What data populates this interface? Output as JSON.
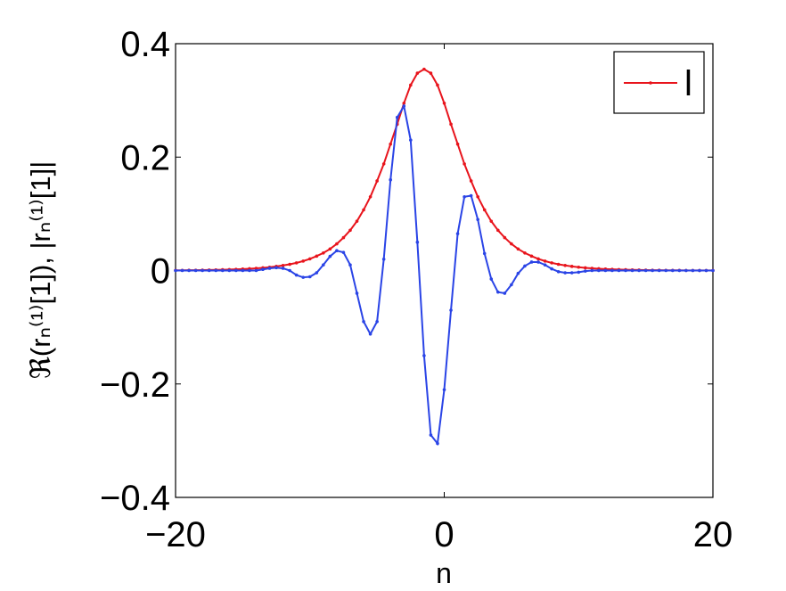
{
  "chart_data": {
    "type": "line",
    "x_label": "n",
    "y_label": "ℜ(rₙ⁽¹⁾[1]), |rₙ⁽¹⁾[1]|",
    "x": [
      -20,
      -19.5,
      -19,
      -18.5,
      -18,
      -17.5,
      -17,
      -16.5,
      -16,
      -15.5,
      -15,
      -14.5,
      -14,
      -13.5,
      -13,
      -12.5,
      -12,
      -11.5,
      -11,
      -10.5,
      -10,
      -9.5,
      -9,
      -8.5,
      -8,
      -7.5,
      -7,
      -6.5,
      -6,
      -5.5,
      -5,
      -4.5,
      -4,
      -3.5,
      -3,
      -2.5,
      -2,
      -1.5,
      -1,
      -0.5,
      0,
      0.5,
      1,
      1.5,
      2,
      2.5,
      3,
      3.5,
      4,
      4.5,
      5,
      5.5,
      6,
      6.5,
      7,
      7.5,
      8,
      8.5,
      9,
      9.5,
      10,
      10.5,
      11,
      11.5,
      12,
      12.5,
      13,
      13.5,
      14,
      14.5,
      15,
      15.5,
      16,
      16.5,
      17,
      17.5,
      18,
      18.5,
      19,
      19.5,
      20
    ],
    "series": [
      {
        "name": "l",
        "color": "#e8141c",
        "values": [
          0.0003,
          0.0004,
          0.0005,
          0.0006,
          0.0007,
          0.0009,
          0.0011,
          0.0014,
          0.0017,
          0.0021,
          0.0026,
          0.0032,
          0.0039,
          0.0048,
          0.0059,
          0.0073,
          0.009,
          0.011,
          0.0135,
          0.0167,
          0.0206,
          0.0254,
          0.031,
          0.038,
          0.047,
          0.058,
          0.071,
          0.087,
          0.107,
          0.13,
          0.158,
          0.188,
          0.223,
          0.258,
          0.295,
          0.327,
          0.348,
          0.355,
          0.348,
          0.327,
          0.295,
          0.258,
          0.223,
          0.188,
          0.158,
          0.13,
          0.107,
          0.087,
          0.071,
          0.058,
          0.047,
          0.038,
          0.031,
          0.0254,
          0.0206,
          0.0167,
          0.0135,
          0.011,
          0.009,
          0.0073,
          0.0059,
          0.0048,
          0.0039,
          0.0032,
          0.0026,
          0.0021,
          0.0017,
          0.0014,
          0.0011,
          0.0009,
          0.0007,
          0.0006,
          0.0005,
          0.0004,
          0.0003,
          0.0003,
          0.0002,
          0.0002,
          0.0001,
          0.0001,
          0.0001
        ]
      },
      {
        "color": "#2a44e6",
        "values": [
          0,
          0,
          0,
          0,
          0,
          0,
          0,
          0,
          0,
          0,
          0,
          0,
          0,
          0.002,
          0.004,
          0.005,
          0.004,
          0,
          -0.008,
          -0.012,
          -0.011,
          -0.004,
          0.01,
          0.025,
          0.035,
          0.032,
          0.01,
          -0.04,
          -0.09,
          -0.112,
          -0.09,
          0.02,
          0.16,
          0.27,
          0.29,
          0.23,
          0.05,
          -0.15,
          -0.29,
          -0.305,
          -0.21,
          -0.07,
          0.065,
          0.13,
          0.132,
          0.09,
          0.03,
          -0.015,
          -0.038,
          -0.04,
          -0.025,
          -0.005,
          0.008,
          0.015,
          0.015,
          0.01,
          0.003,
          -0.002,
          -0.004,
          -0.004,
          -0.003,
          -0.001,
          0,
          0,
          0,
          0,
          0,
          0,
          0,
          0,
          0,
          0,
          0,
          0,
          0,
          0,
          0,
          0,
          0,
          0,
          0
        ]
      }
    ],
    "xlim": [
      -20,
      20
    ],
    "ylim": [
      -0.4,
      0.4
    ],
    "xticks": [
      {
        "value": -20,
        "label": "−20"
      },
      0,
      20
    ],
    "yticks": [
      {
        "value": -0.4,
        "label": "−0.4"
      },
      {
        "value": -0.2,
        "label": "−0.2"
      },
      0,
      0.2,
      0.4
    ],
    "legend": "upper right"
  }
}
